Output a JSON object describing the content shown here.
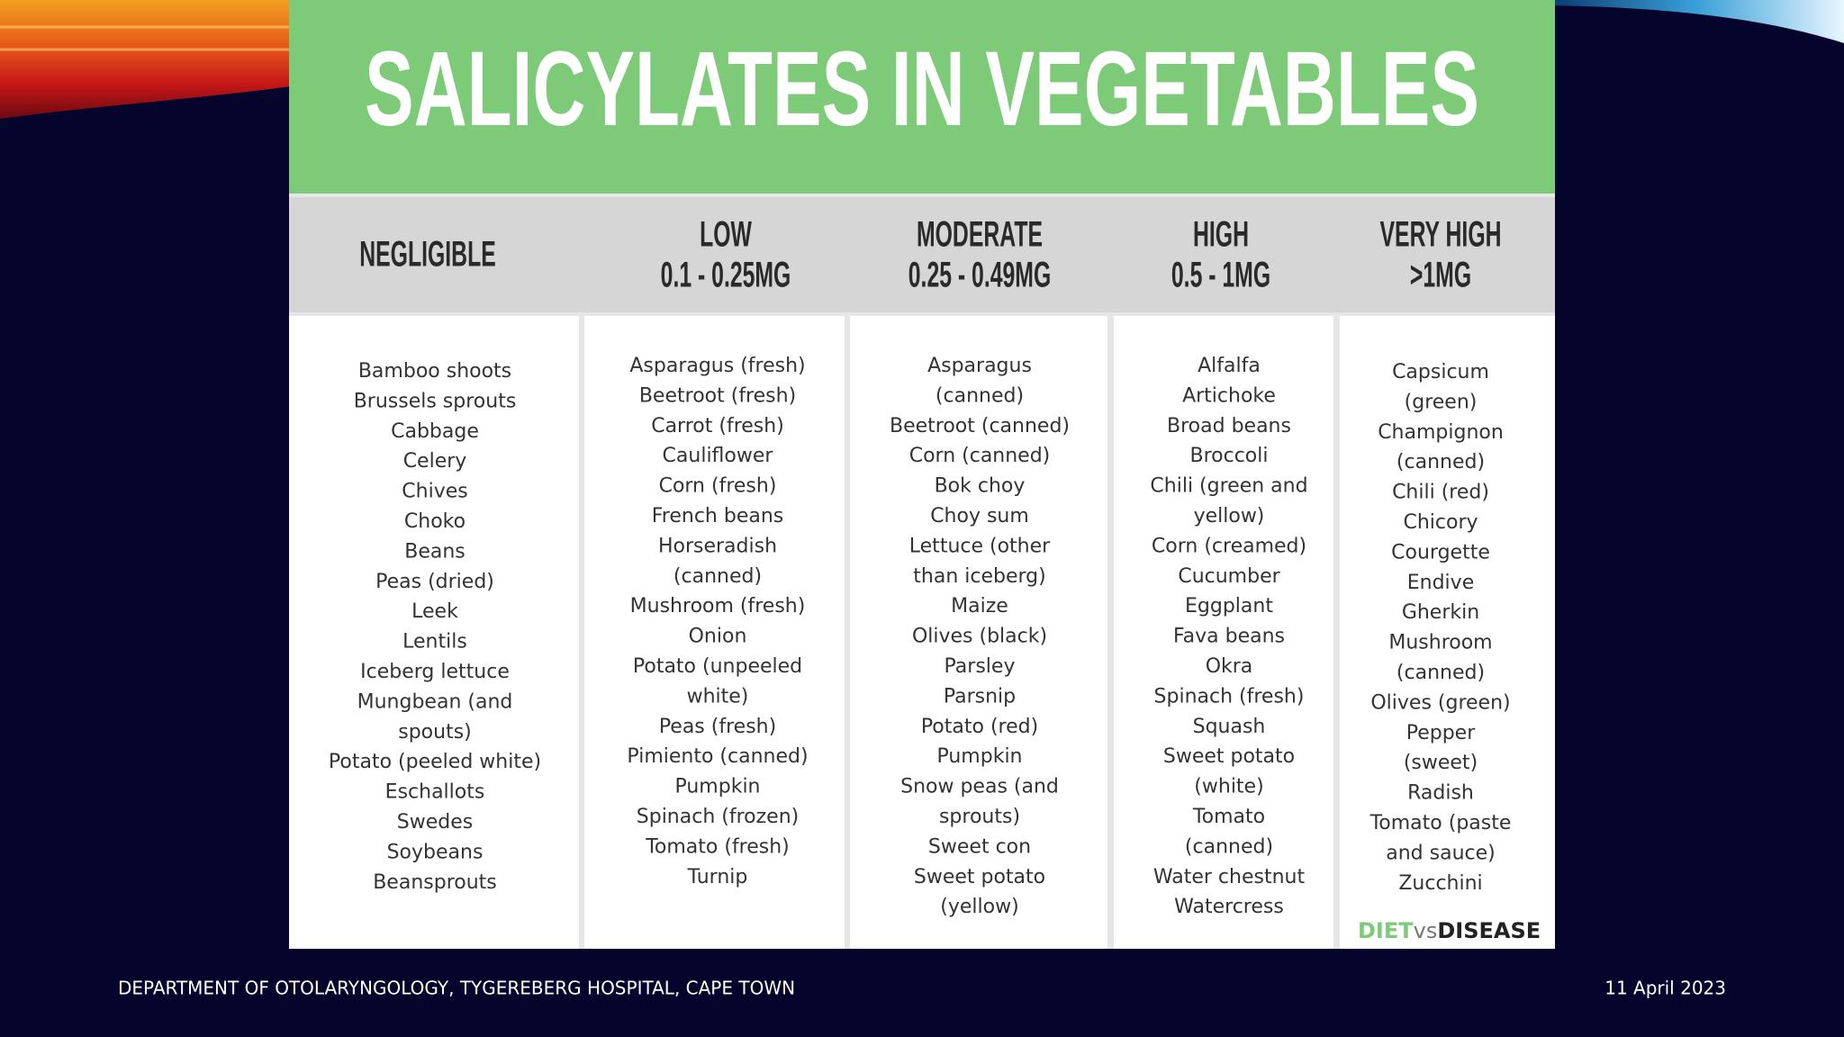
{
  "header": {
    "title": "SALICYLATES IN VEGETABLES"
  },
  "columns": [
    {
      "heading": [
        "NEGLIGIBLE"
      ],
      "items": [
        "Bamboo shoots",
        "Brussels sprouts",
        "Cabbage",
        "Celery",
        "Chives",
        "Choko",
        "Beans",
        "Peas (dried)",
        "Leek",
        "Lentils",
        "Iceberg lettuce",
        "Mungbean (and",
        "spouts)",
        "Potato (peeled white)",
        "Eschallots",
        "Swedes",
        "Soybeans",
        "Beansprouts"
      ]
    },
    {
      "heading": [
        "LOW",
        "0.1 - 0.25MG"
      ],
      "items": [
        "Asparagus (fresh)",
        "Beetroot (fresh)",
        "Carrot (fresh)",
        "Cauliflower",
        "Corn (fresh)",
        "French beans",
        "Horseradish",
        "(canned)",
        "Mushroom (fresh)",
        "Onion",
        "Potato (unpeeled",
        "white)",
        "Peas (fresh)",
        "Pimiento (canned)",
        "Pumpkin",
        "Spinach (frozen)",
        "Tomato (fresh)",
        "Turnip"
      ]
    },
    {
      "heading": [
        "MODERATE",
        "0.25 - 0.49MG"
      ],
      "items": [
        "Asparagus",
        "(canned)",
        "Beetroot (canned)",
        "Corn (canned)",
        "Bok choy",
        "Choy sum",
        "Lettuce (other",
        "than iceberg)",
        "Maize",
        "Olives (black)",
        "Parsley",
        "Parsnip",
        "Potato (red)",
        "Pumpkin",
        "Snow peas (and",
        "sprouts)",
        "Sweet con",
        "Sweet potato",
        "(yellow)"
      ]
    },
    {
      "heading": [
        "HIGH",
        "0.5 - 1MG"
      ],
      "items": [
        "Alfalfa",
        "Artichoke",
        "Broad beans",
        "Broccoli",
        "Chili (green and",
        "yellow)",
        "Corn (creamed)",
        "Cucumber",
        "Eggplant",
        "Fava beans",
        "Okra",
        "Spinach (fresh)",
        "Squash",
        "Sweet potato",
        "(white)",
        "Tomato",
        "(canned)",
        "Water chestnut",
        "Watercress"
      ]
    },
    {
      "heading": [
        "VERY HIGH",
        ">1MG"
      ],
      "items": [
        "Capsicum",
        "(green)",
        "Champignon",
        "(canned)",
        "Chili (red)",
        "Chicory",
        "Courgette",
        "Endive",
        "Gherkin",
        "Mushroom",
        "(canned)",
        "Olives (green)",
        "Pepper",
        "(sweet)",
        "Radish",
        "Tomato (paste",
        "and sauce)",
        "Zucchini"
      ]
    }
  ],
  "logo": {
    "part1": "DIET",
    "part2": "vs",
    "part3": "DISEASE"
  },
  "footer": {
    "department": "DEPARTMENT OF OTOLARYNGOLOGY, TYGEREBERG HOSPITAL, CAPE TOWN",
    "date": "11 April 2023"
  }
}
